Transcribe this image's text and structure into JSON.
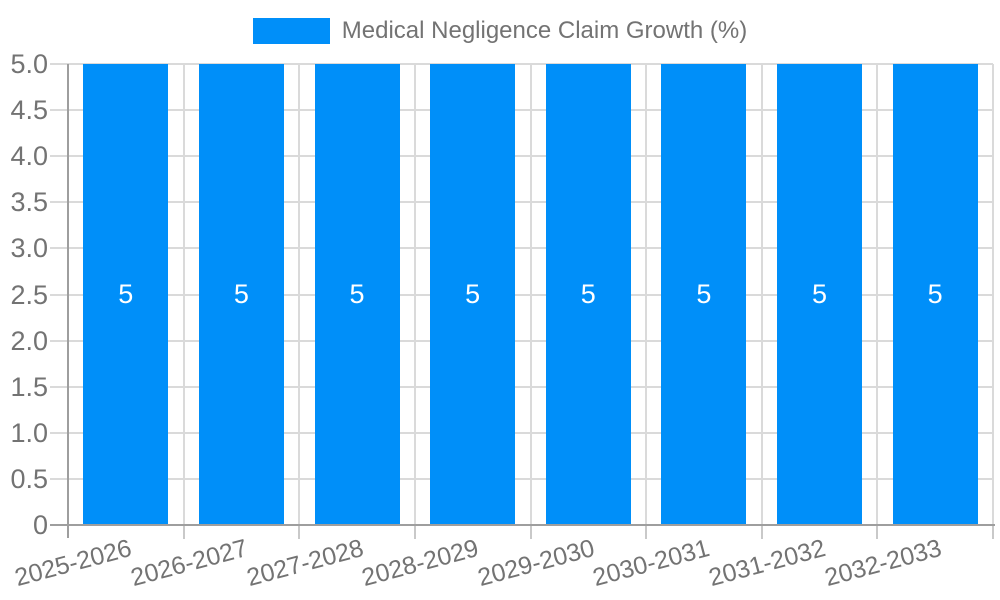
{
  "legend": {
    "label": "Medical Negligence Claim Growth (%)"
  },
  "chart_data": {
    "type": "bar",
    "title": "Medical Negligence Claim Growth (%)",
    "xlabel": "",
    "ylabel": "",
    "categories": [
      "2025-2026",
      "2026-2027",
      "2027-2028",
      "2028-2029",
      "2029-2030",
      "2030-2031",
      "2031-2032",
      "2032-2033"
    ],
    "series": [
      {
        "name": "Medical Negligence Claim Growth (%)",
        "values": [
          5,
          5,
          5,
          5,
          5,
          5,
          5,
          5
        ]
      }
    ],
    "bar_value_labels": [
      "5",
      "5",
      "5",
      "5",
      "5",
      "5",
      "5",
      "5"
    ],
    "ylim": [
      0,
      5
    ],
    "y_tick_values": [
      0,
      0.5,
      1,
      1.5,
      2,
      2.5,
      3,
      3.5,
      4,
      4.5,
      5
    ],
    "y_tick_labels": [
      "0",
      "0.5",
      "1.0",
      "1.5",
      "2.0",
      "2.5",
      "3.0",
      "3.5",
      "4.0",
      "4.5",
      "5.0"
    ],
    "grid": true,
    "legend_position": "top",
    "x_label_rotation_deg": -15
  },
  "colors": {
    "bar": "#008FF9",
    "grid": "#DADADA",
    "axis": "#9E9E9E",
    "tick": "#C9C9C9",
    "text": "#737373",
    "bar_label": "#FFFFFF",
    "background": "#FFFFFF"
  }
}
